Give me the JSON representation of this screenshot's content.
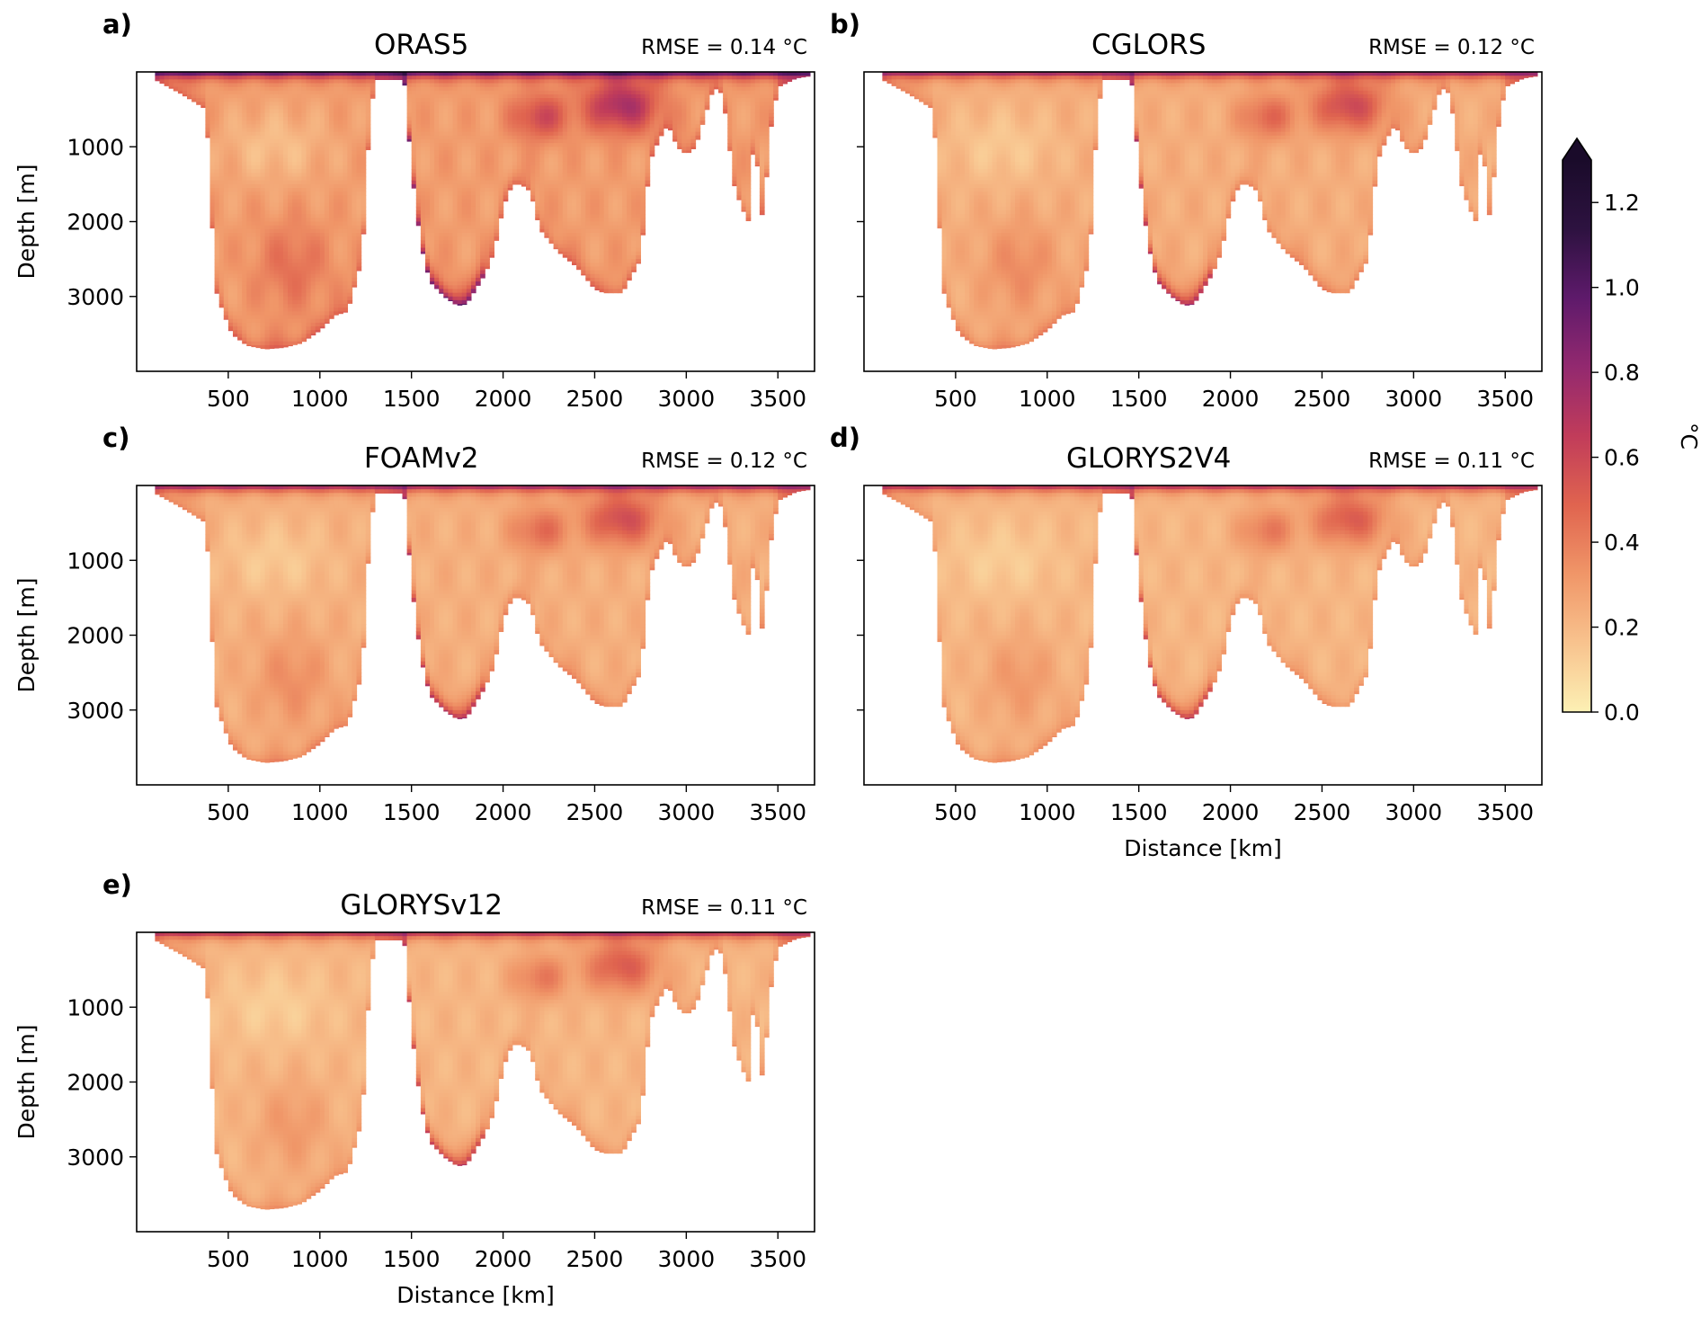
{
  "chart_data": {
    "type": "heatmap",
    "description": "Vertical sections of temperature RMSE (°C) vs depth and along-section distance for five ocean reanalyses",
    "colorbar": {
      "label": "°C",
      "colormap": "magma_r-like (pale yellow to dark purple)",
      "range": [
        0.0,
        1.3
      ],
      "ticks": [
        "0.0",
        "0.2",
        "0.4",
        "0.6",
        "0.8",
        "1.0",
        "1.2"
      ],
      "tick_values": [
        0.0,
        0.2,
        0.4,
        0.6,
        0.8,
        1.0,
        1.2
      ],
      "extend": "max",
      "stops": [
        "#fcf0b4",
        "#f8c38e",
        "#f09668",
        "#e0644f",
        "#c13c5a",
        "#93296f",
        "#5e1a6b",
        "#2d1240",
        "#1a0b2a"
      ]
    },
    "x_axis": {
      "label": "Distance [km]",
      "range": [
        0,
        3700
      ],
      "ticks": [
        500,
        1000,
        1500,
        2000,
        2500,
        3000,
        3500
      ],
      "tick_labels": [
        "500",
        "1000",
        "1500",
        "2000",
        "2500",
        "3000",
        "3500"
      ]
    },
    "y_axis": {
      "label": "Depth [m]",
      "range": [
        0,
        4000
      ],
      "inverted": true,
      "ticks": [
        1000,
        2000,
        3000
      ],
      "tick_labels": [
        "1000",
        "2000",
        "3000"
      ]
    },
    "bathymetry_profile": {
      "x": [
        100,
        250,
        380,
        400,
        430,
        470,
        520,
        600,
        700,
        800,
        900,
        1000,
        1080,
        1150,
        1230,
        1270,
        1300,
        1460,
        1500,
        1550,
        1600,
        1680,
        1750,
        1800,
        1850,
        1900,
        1950,
        2000,
        2050,
        2100,
        2150,
        2200,
        2300,
        2400,
        2500,
        2550,
        2650,
        2750,
        2800,
        2850,
        2900,
        2950,
        3000,
        3050,
        3100,
        3150,
        3200,
        3260,
        3300,
        3340,
        3370,
        3420,
        3450,
        3500,
        3600,
        3680
      ],
      "depth": [
        100,
        300,
        500,
        1500,
        2900,
        3200,
        3500,
        3650,
        3700,
        3680,
        3620,
        3450,
        3250,
        3200,
        2500,
        700,
        100,
        100,
        1300,
        2300,
        2800,
        3000,
        3120,
        3100,
        2900,
        2700,
        2400,
        1800,
        1500,
        1500,
        1600,
        2100,
        2400,
        2600,
        2900,
        2950,
        2950,
        2500,
        1200,
        900,
        700,
        1000,
        1100,
        1000,
        600,
        200,
        300,
        1500,
        1800,
        2000,
        800,
        2100,
        900,
        200,
        80,
        50
      ]
    },
    "panels": [
      {
        "id": "a",
        "letter": "a)",
        "title": "ORAS5",
        "rmse_text": "RMSE = 0.14 °C",
        "rmse": 0.14,
        "intensity": 1.0,
        "show_xlabel": false,
        "show_ylabel": true,
        "show_yticklabels": true
      },
      {
        "id": "b",
        "letter": "b)",
        "title": "CGLORS",
        "rmse_text": "RMSE = 0.12 °C",
        "rmse": 0.12,
        "intensity": 0.8,
        "show_xlabel": false,
        "show_ylabel": false,
        "show_yticklabels": false
      },
      {
        "id": "c",
        "letter": "c)",
        "title": "FOAMv2",
        "rmse_text": "RMSE = 0.12 °C",
        "rmse": 0.12,
        "intensity": 0.78,
        "show_xlabel": false,
        "show_ylabel": true,
        "show_yticklabels": true
      },
      {
        "id": "d",
        "letter": "d)",
        "title": "GLORYS2V4",
        "rmse_text": "RMSE = 0.11 °C",
        "rmse": 0.11,
        "intensity": 0.7,
        "show_xlabel": true,
        "show_ylabel": false,
        "show_yticklabels": false
      },
      {
        "id": "e",
        "letter": "e)",
        "title": "GLORYSv12",
        "rmse_text": "RMSE = 0.11 °C",
        "rmse": 0.11,
        "intensity": 0.7,
        "show_xlabel": true,
        "show_ylabel": true,
        "show_yticklabels": true
      }
    ]
  }
}
